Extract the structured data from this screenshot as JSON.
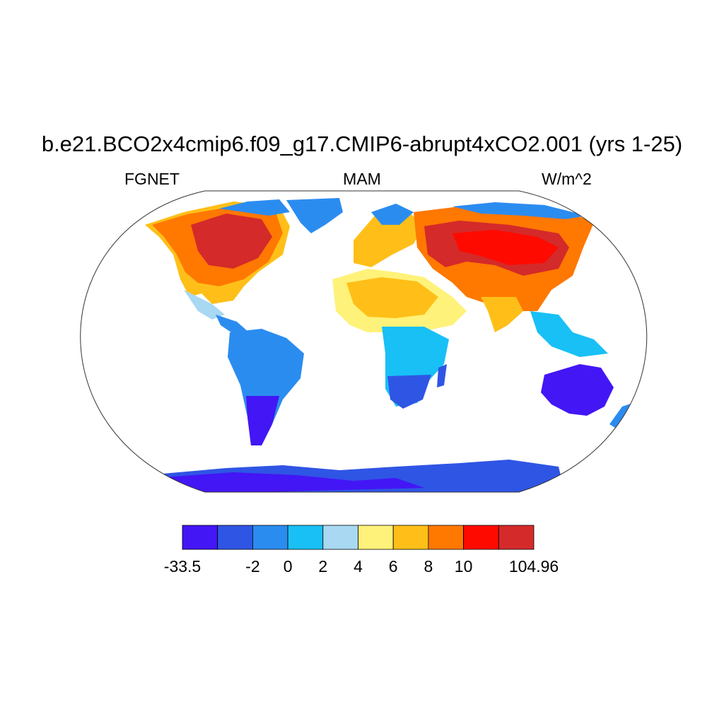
{
  "figure": {
    "title": "b.e21.BCO2x4cmip6.f09_g17.CMIP6-abrupt4xCO2.001 (yrs 1-25)",
    "left_label": "FGNET",
    "center_label": "MAM",
    "right_label": "W/m^2",
    "projection": "Robinson",
    "field": "FGNET"
  },
  "colorbar": {
    "labels": [
      "-33.5",
      "-2",
      "0",
      "2",
      "4",
      "6",
      "8",
      "10",
      "104.96"
    ],
    "colors": [
      "#4316f5",
      "#2f55e5",
      "#2b8cf0",
      "#18c0f6",
      "#a8d8f2",
      "#fff27a",
      "#ffbf18",
      "#ff7800",
      "#ff0a00",
      "#d42a2a"
    ]
  }
}
